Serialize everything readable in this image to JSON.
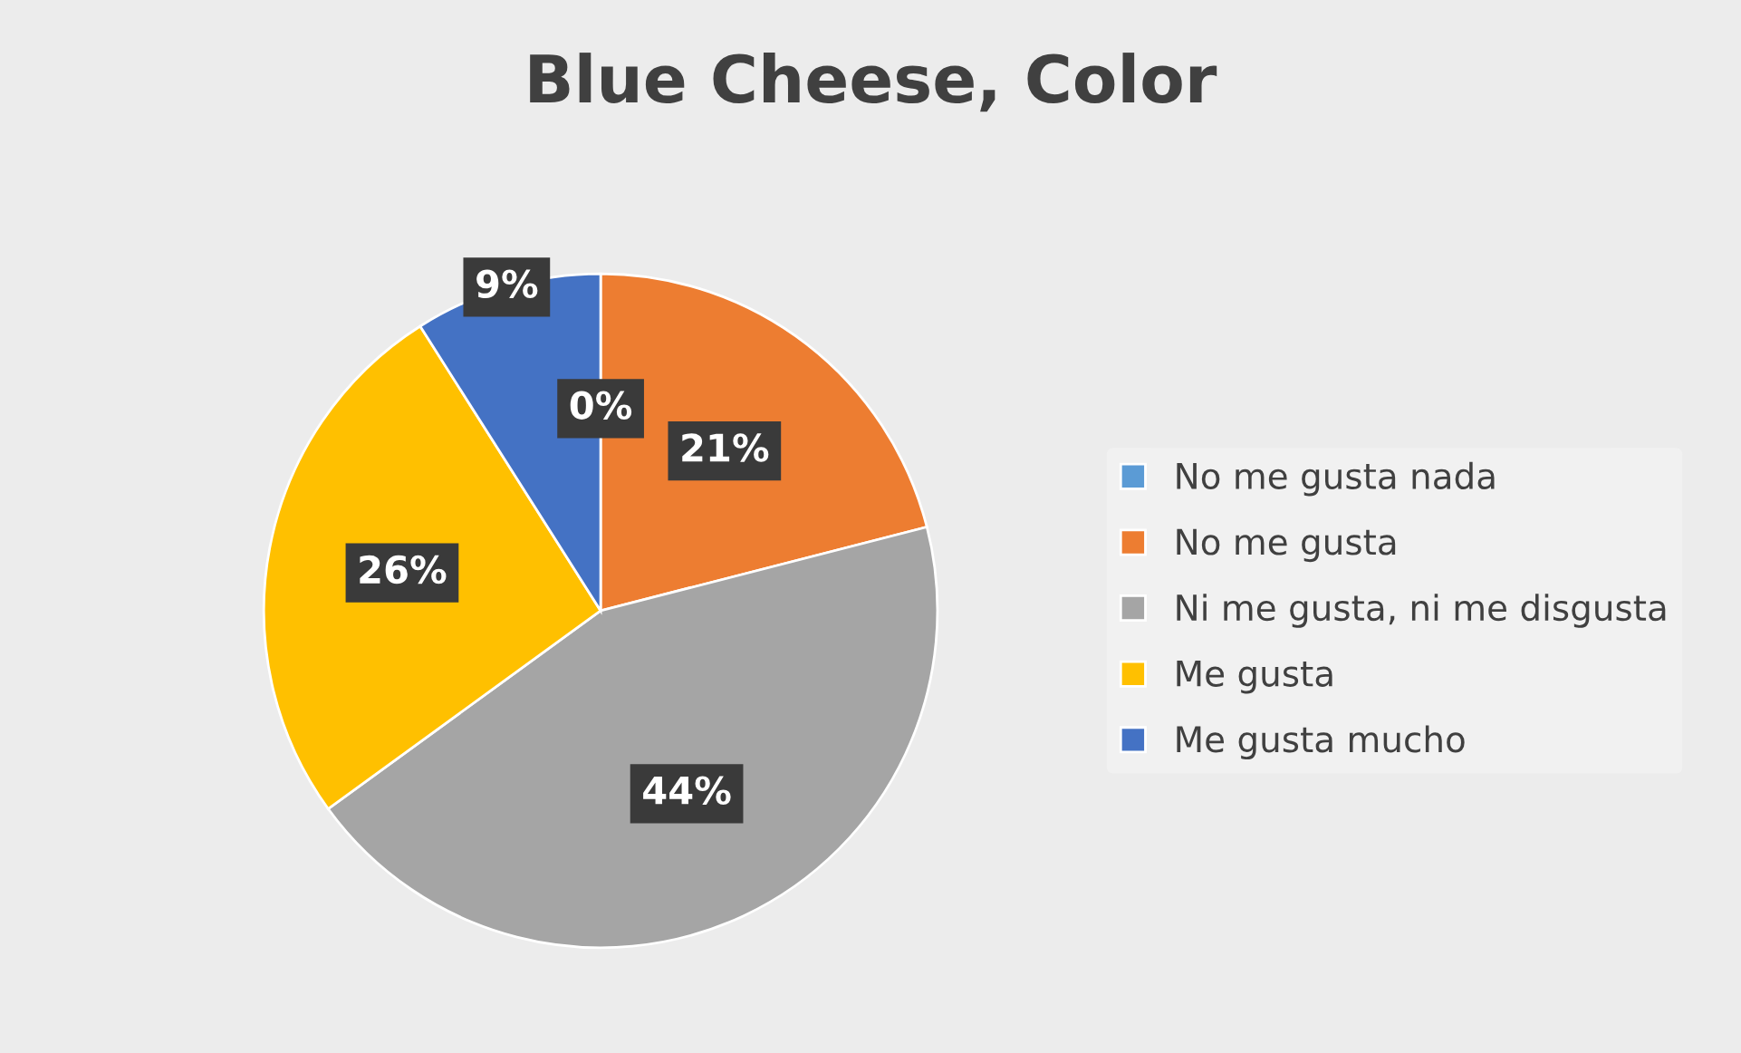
{
  "chart_data": {
    "type": "pie",
    "title": "Blue Cheese, Color",
    "categories": [
      "No me gusta nada",
      "No me gusta",
      "Ni me gusta, ni me disgusta",
      "Me gusta",
      "Me gusta mucho"
    ],
    "values": [
      0,
      21,
      44,
      26,
      9
    ],
    "value_labels": [
      "0%",
      "21%",
      "44%",
      "26%",
      "9%"
    ],
    "colors": [
      "#5b9bd5",
      "#ed7d31",
      "#a5a5a5",
      "#ffc000",
      "#4472c4"
    ],
    "legend": "right"
  }
}
